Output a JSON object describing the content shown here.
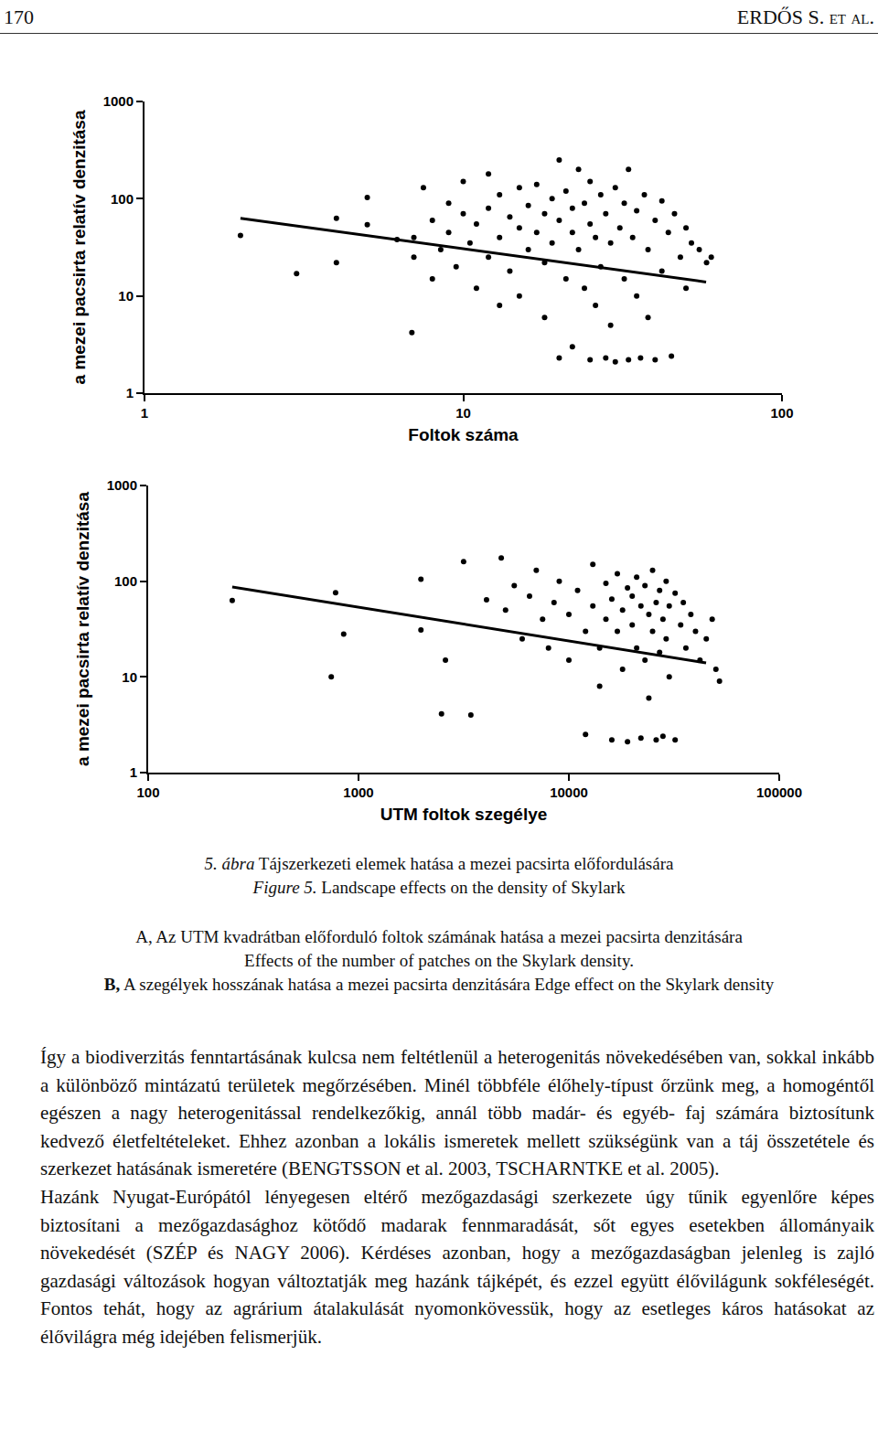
{
  "header": {
    "page": "170",
    "authors": "ERDŐS S. et al."
  },
  "chart_data": [
    {
      "type": "scatter",
      "xlabel": "Foltok száma",
      "ylabel": "a mezei pacsirta relatív denzitása",
      "log": true,
      "grid": false,
      "xlim": [
        1,
        100
      ],
      "ylim": [
        1,
        1000
      ],
      "xticks": [
        1,
        10,
        100
      ],
      "yticks": [
        1,
        10,
        100,
        1000
      ],
      "series": [
        {
          "type": "scatter",
          "marker": "circle",
          "color": "#000000",
          "x": [
            2,
            3,
            4,
            4,
            5,
            5,
            6.2,
            6.9,
            7,
            7,
            7.5,
            8,
            8,
            8.5,
            9,
            9,
            9.5,
            10,
            10,
            10.5,
            11,
            11,
            12,
            12,
            12,
            13,
            13,
            13,
            14,
            14,
            15,
            15,
            15,
            16,
            16,
            17,
            17,
            18,
            18,
            18,
            19,
            19,
            20,
            20,
            20,
            21,
            21,
            22,
            22,
            22,
            23,
            23,
            24,
            24,
            25,
            25,
            25,
            26,
            26,
            27,
            27,
            28,
            28,
            29,
            29,
            30,
            30,
            31,
            32,
            32,
            33,
            33,
            34,
            35,
            35,
            36,
            37,
            38,
            38,
            40,
            40,
            42,
            42,
            44,
            45,
            46,
            48,
            50,
            50,
            52,
            55,
            58,
            60
          ],
          "values": [
            42,
            17,
            63,
            22,
            103,
            54,
            38,
            4.2,
            40,
            25,
            130,
            60,
            15,
            30,
            90,
            45,
            20,
            150,
            70,
            35,
            12,
            55,
            180,
            80,
            25,
            110,
            40,
            8,
            65,
            18,
            130,
            50,
            10,
            85,
            30,
            140,
            45,
            70,
            22,
            6,
            100,
            35,
            250,
            60,
            2.3,
            120,
            15,
            45,
            80,
            3,
            200,
            30,
            90,
            12,
            55,
            2.2,
            150,
            40,
            8,
            110,
            20,
            70,
            2.3,
            35,
            5,
            130,
            2.1,
            50,
            90,
            15,
            200,
            2.2,
            40,
            75,
            10,
            2.3,
            110,
            30,
            6,
            60,
            2.2,
            95,
            18,
            45,
            2.4,
            70,
            25,
            50,
            12,
            35,
            30,
            22,
            25
          ]
        },
        {
          "type": "line",
          "line_style": "solid",
          "color": "#000000",
          "x": [
            2,
            57.8
          ],
          "values": [
            63,
            13.9
          ]
        }
      ]
    },
    {
      "type": "scatter",
      "xlabel": "UTM foltok szegélye",
      "ylabel": "a mezei pacsirta relatív denzitása",
      "log": true,
      "grid": false,
      "xlim": [
        100,
        100000
      ],
      "ylim": [
        1,
        1000
      ],
      "xticks": [
        100,
        1000,
        10000,
        100000
      ],
      "yticks": [
        1,
        10,
        100,
        1000
      ],
      "series": [
        {
          "type": "scatter",
          "marker": "circle",
          "color": "#000000",
          "x": [
            251,
            778,
            850,
            742,
            1980,
            1980,
            2590,
            2480,
            3160,
            3420,
            4770,
            4060,
            5000,
            5500,
            6000,
            6500,
            7000,
            7500,
            8000,
            8500,
            9000,
            10000,
            10000,
            11000,
            12000,
            12000,
            13000,
            13000,
            14000,
            14000,
            15000,
            15000,
            16000,
            16000,
            17000,
            17000,
            18000,
            18000,
            19000,
            19000,
            20000,
            20000,
            21000,
            21000,
            22000,
            22000,
            23000,
            23000,
            24000,
            24000,
            25000,
            25000,
            26000,
            26000,
            27000,
            27000,
            28000,
            28000,
            29000,
            29000,
            30000,
            30000,
            32000,
            32000,
            34000,
            35000,
            36000,
            38000,
            40000,
            42000,
            45000,
            48000,
            50000,
            52000
          ],
          "values": [
            63,
            76,
            28,
            10,
            105,
            31,
            15,
            4.1,
            160,
            4,
            175,
            64,
            50,
            90,
            25,
            70,
            130,
            40,
            20,
            60,
            100,
            45,
            15,
            80,
            30,
            2.5,
            150,
            55,
            20,
            8,
            95,
            40,
            65,
            2.2,
            120,
            30,
            50,
            12,
            85,
            2.1,
            70,
            35,
            110,
            20,
            55,
            2.3,
            90,
            15,
            45,
            6,
            130,
            30,
            60,
            2.2,
            80,
            18,
            40,
            2.4,
            100,
            25,
            55,
            10,
            75,
            2.2,
            35,
            60,
            20,
            45,
            30,
            15,
            25,
            40,
            12,
            9
          ]
        },
        {
          "type": "line",
          "line_style": "solid",
          "color": "#000000",
          "x": [
            251,
            44900
          ],
          "values": [
            87,
            14
          ]
        }
      ]
    }
  ],
  "caption": {
    "hu_label": "5. ábra",
    "hu_text": "Tájszerkezeti elemek hatása a mezei pacsirta előfordulására",
    "en_label": "Figure 5.",
    "en_text": "Landscape effects on the density of Skylark",
    "panels": [
      {
        "label": "A,",
        "hu": "Az UTM kvadrátban előforduló foltok számának hatása a mezei pacsirta denzitására",
        "en": "Effects of the number of patches on the Skylark density."
      },
      {
        "label": "B,",
        "hu": "A szegélyek hosszának hatása a mezei pacsirta denzitására",
        "en": "Edge effect on the Skylark density"
      }
    ]
  },
  "paragraphs": [
    "Így a biodiverzitás fenntartásának kulcsa nem feltétlenül a heterogenitás növekedésében van, sokkal inkább a különböző mintázatú területek megőrzésében. Minél többféle élőhely-típust őrzünk meg, a homogéntől egészen a nagy heterogenitással rendelkezőkig, annál több madár- és egyéb- faj számára biztosítunk kedvező életfeltételeket. Ehhez azonban a lokális ismeretek mellett szükségünk van a táj összetétele és szerkezet hatásának ismeretére (BENGTSSON et al. 2003, TSCHARNTKE et al. 2005).",
    "Hazánk Nyugat-Európától lényegesen eltérő mezőgazdasági szerkezete úgy tűnik egyenlőre képes biztosítani a mezőgazdasághoz kötődő madarak fennmaradását, sőt egyes esetekben állományaik növekedését (SZÉP és NAGY 2006). Kérdéses azonban, hogy a mezőgazdaságban jelenleg is zajló gazdasági változások hogyan változtatják meg hazánk tájképét, és ezzel együtt élővilágunk sokféleségét. Fontos tehát, hogy az agrárium átalakulását nyomonkövessük, hogy az esetleges káros hatásokat az élővilágra még idejében felismerjük."
  ]
}
